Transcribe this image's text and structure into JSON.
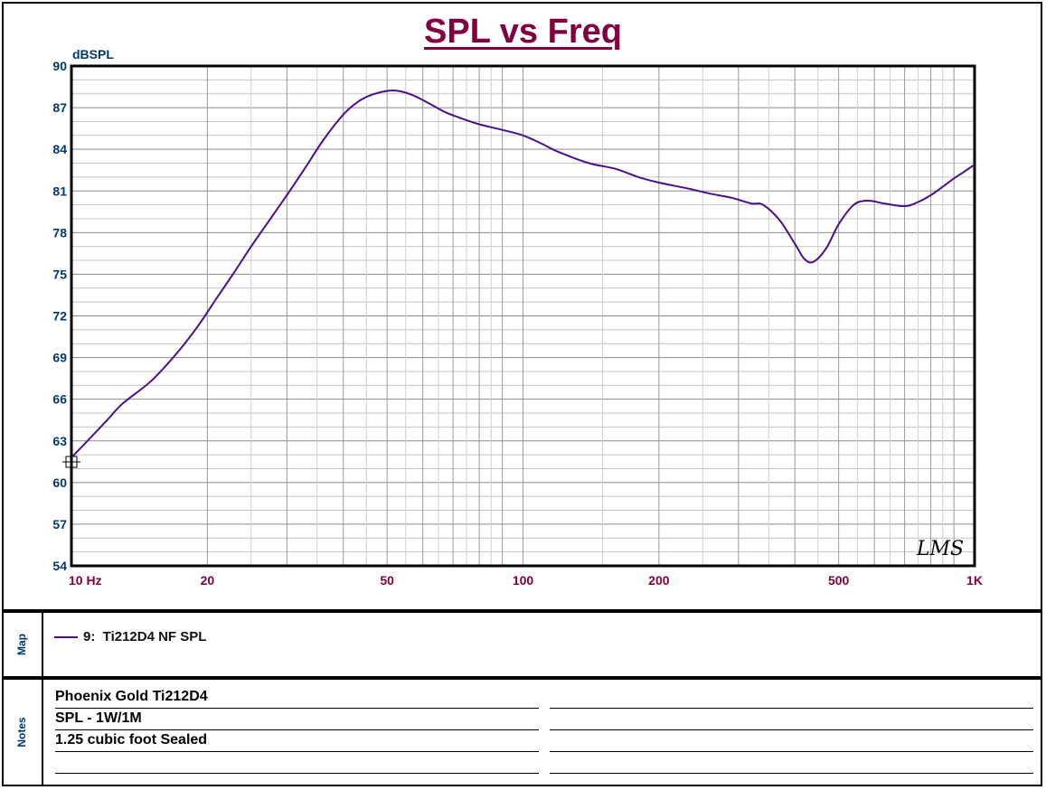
{
  "chart_data": {
    "type": "line",
    "title": "SPL vs Freq",
    "ylabel": "dBSPL",
    "xscale": "log",
    "xlim": [
      10,
      1000
    ],
    "ylim": [
      54,
      90
    ],
    "yticks": [
      54,
      57,
      60,
      63,
      66,
      69,
      72,
      75,
      78,
      81,
      84,
      87,
      90
    ],
    "xticks": [
      {
        "value": 10,
        "label": "10 Hz"
      },
      {
        "value": 20,
        "label": "20"
      },
      {
        "value": 50,
        "label": "50"
      },
      {
        "value": 100,
        "label": "100"
      },
      {
        "value": 200,
        "label": "200"
      },
      {
        "value": 500,
        "label": "500"
      },
      {
        "value": 1000,
        "label": "1K"
      }
    ],
    "grid": true,
    "series": [
      {
        "name": "9:  Ti212D4 NF SPL",
        "color": "#4b0f8a",
        "x": [
          10,
          11,
          12,
          13,
          15,
          17,
          19,
          21,
          23,
          25,
          28,
          30,
          33,
          36,
          40,
          43,
          46,
          50,
          53,
          57,
          62,
          67,
          72,
          80,
          90,
          100,
          110,
          120,
          140,
          160,
          180,
          200,
          230,
          260,
          290,
          320,
          340,
          370,
          400,
          420,
          440,
          470,
          500,
          540,
          580,
          630,
          700,
          750,
          800,
          850,
          900,
          950,
          1000
        ],
        "y": [
          61.8,
          63.2,
          64.5,
          65.7,
          67.3,
          69.2,
          71.2,
          73.3,
          75.2,
          77.0,
          79.3,
          80.7,
          82.7,
          84.6,
          86.5,
          87.4,
          87.9,
          88.2,
          88.2,
          87.9,
          87.3,
          86.7,
          86.3,
          85.8,
          85.4,
          85.0,
          84.4,
          83.8,
          83.0,
          82.6,
          82.0,
          81.6,
          81.2,
          80.8,
          80.5,
          80.1,
          80.0,
          78.9,
          77.2,
          76.1,
          75.9,
          76.9,
          78.6,
          80.0,
          80.3,
          80.1,
          79.9,
          80.2,
          80.7,
          81.3,
          81.9,
          82.4,
          82.9
        ]
      }
    ]
  },
  "brand_mark": "LMS",
  "map_panel": {
    "label": "Map"
  },
  "notes_panel": {
    "label": "Notes",
    "lines": [
      "Phoenix Gold Ti212D4",
      "SPL - 1W/1M",
      "1.25 cubic foot Sealed",
      ""
    ]
  }
}
